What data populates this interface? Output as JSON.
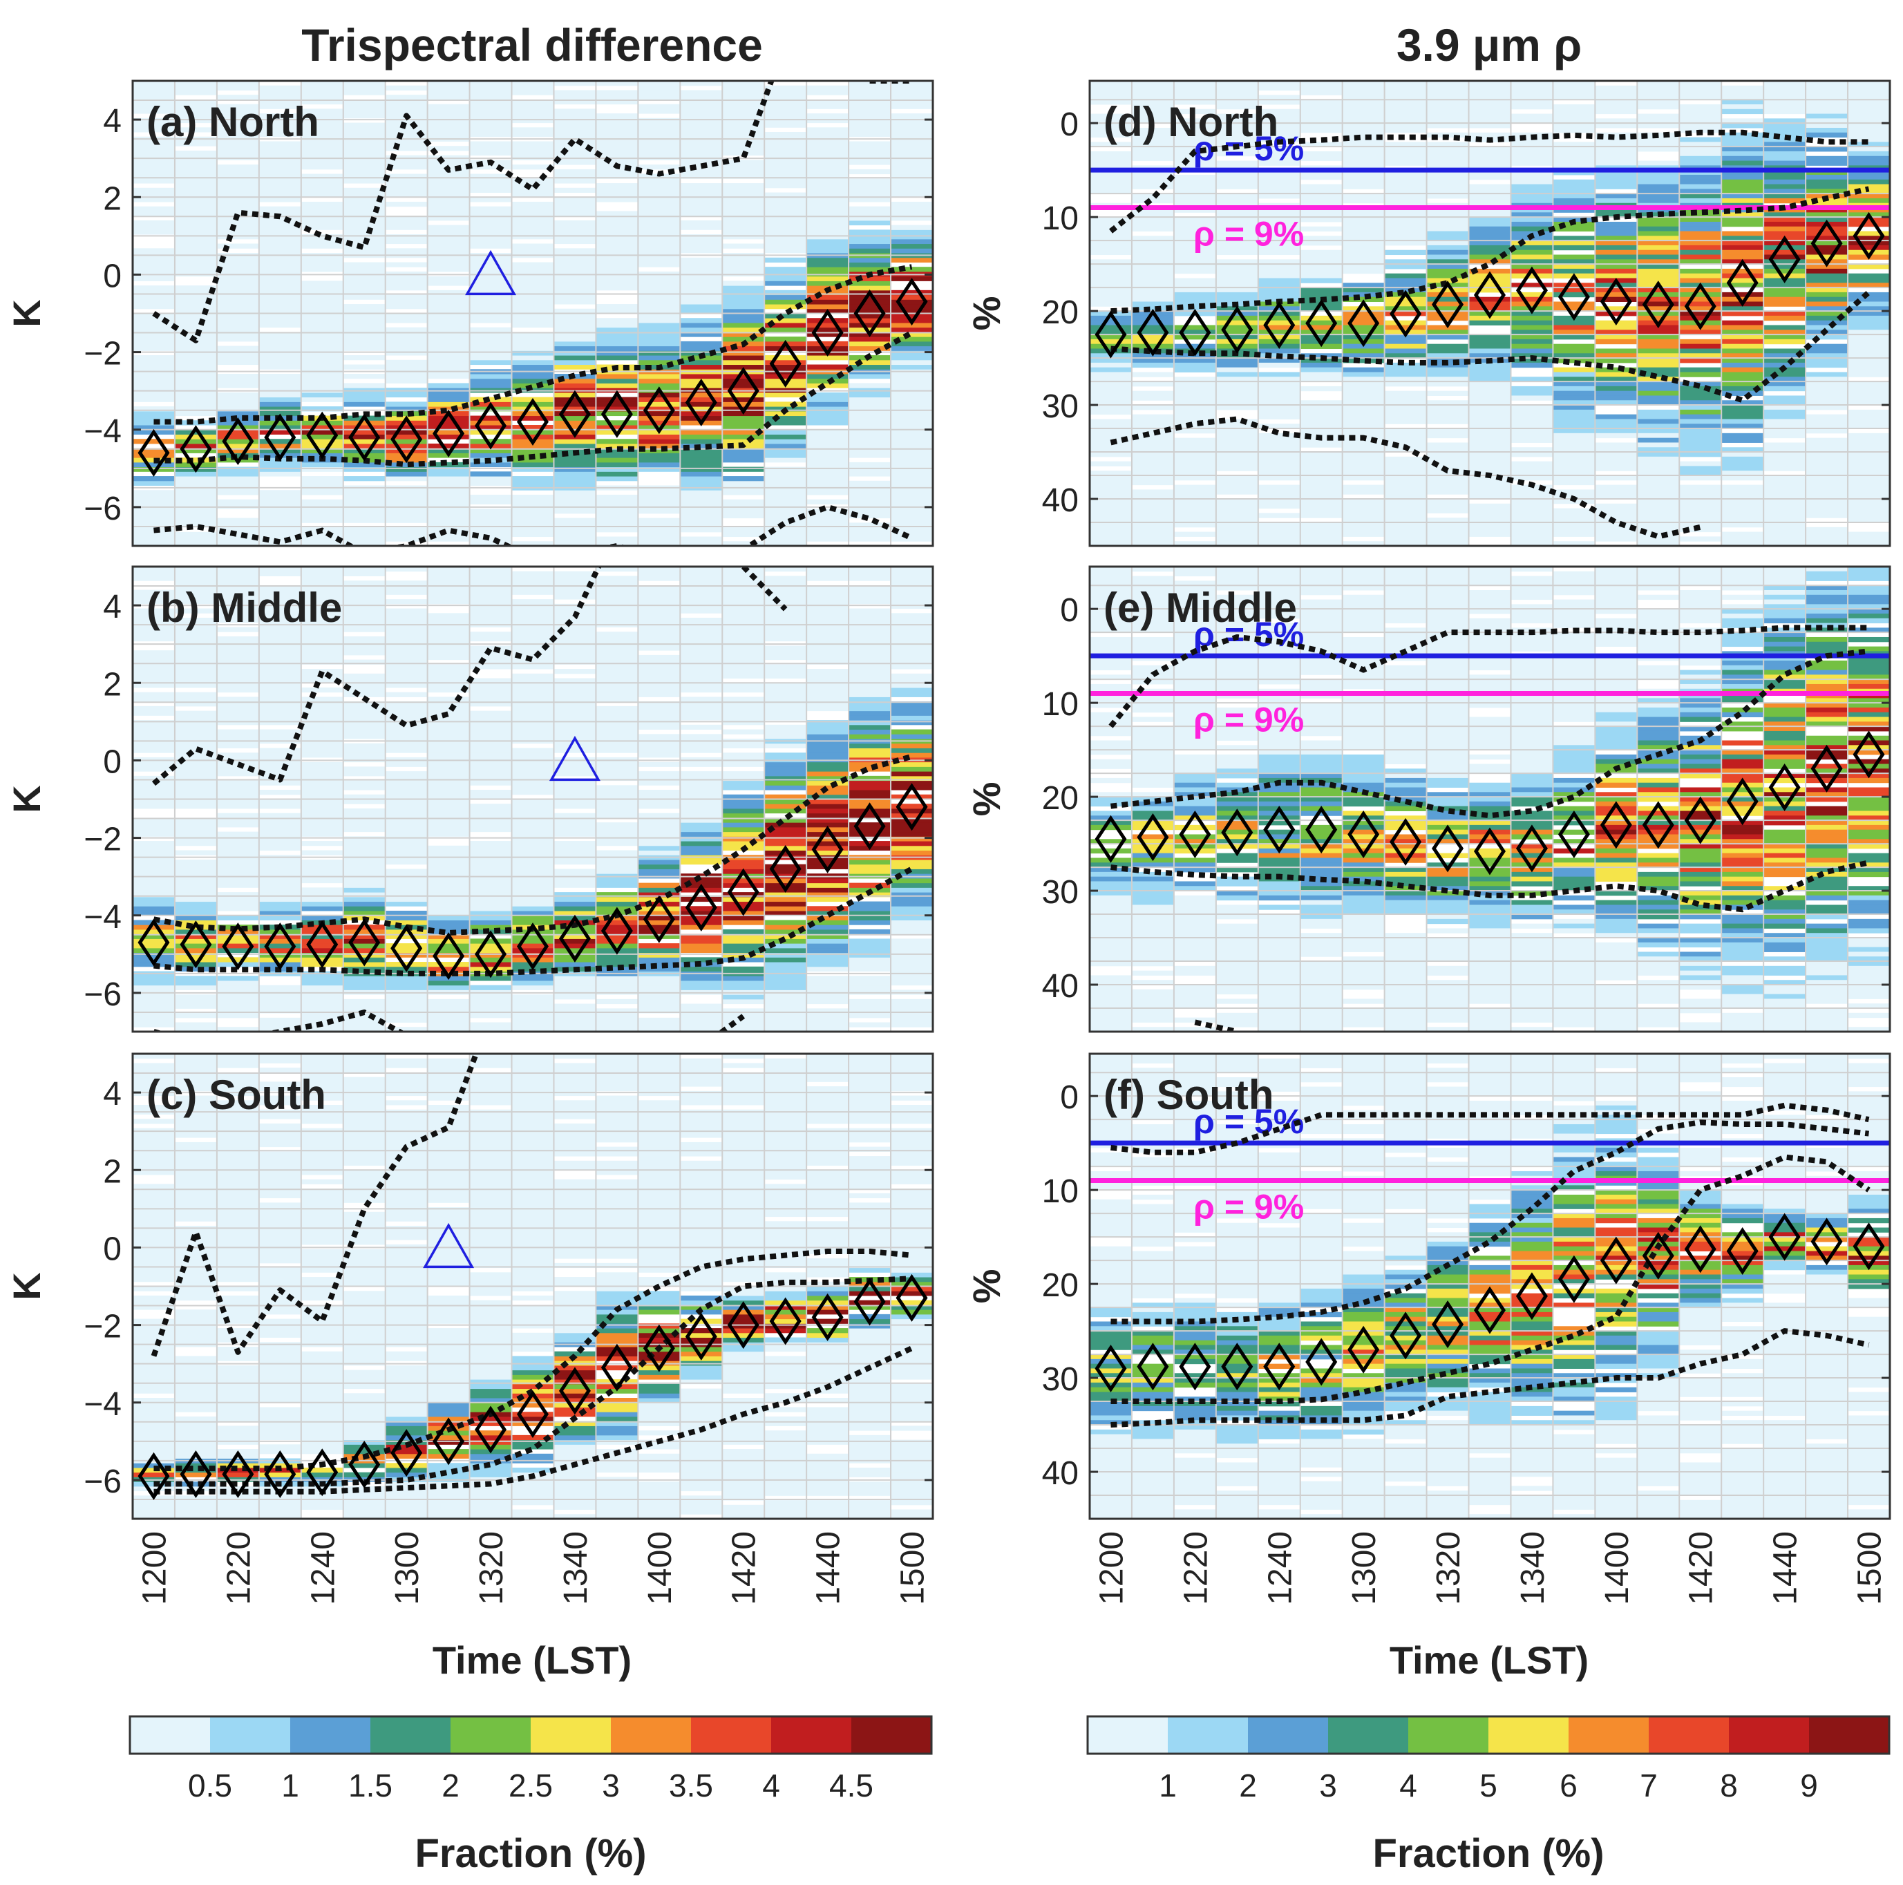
{
  "figure": {
    "left_column_title": "Trispectral difference",
    "right_column_title": "3.9 μm ρ",
    "x_label": "Time (LST)"
  },
  "chart_data": [
    {
      "type": "heatmap",
      "panel": "(a) North",
      "title": "(a) North",
      "ylabel": "K",
      "xlabel": "",
      "x": [
        1200,
        1210,
        1220,
        1230,
        1240,
        1250,
        1300,
        1310,
        1320,
        1330,
        1340,
        1350,
        1400,
        1410,
        1420,
        1430,
        1440,
        1450,
        1500
      ],
      "x_tick_labels": [],
      "ylim": [
        -7,
        5
      ],
      "y_ticks": [
        -6,
        -4,
        -2,
        0,
        2,
        4
      ],
      "y_tick_labels": [
        "−6",
        "−4",
        "−2",
        "0",
        "2",
        "4"
      ],
      "y_inverted": false,
      "median": [
        -4.6,
        -4.5,
        -4.3,
        -4.2,
        -4.15,
        -4.2,
        -4.25,
        -4.1,
        -3.9,
        -3.8,
        -3.6,
        -3.6,
        -3.5,
        -3.3,
        -3.0,
        -2.3,
        -1.5,
        -1.0,
        -0.7
      ],
      "quartile_upper": [
        -3.8,
        -3.8,
        -3.7,
        -3.7,
        -3.7,
        -3.6,
        -3.6,
        -3.5,
        -3.2,
        -2.9,
        -2.6,
        -2.4,
        -2.4,
        -2.1,
        -1.8,
        -1.0,
        -0.4,
        0.0,
        0.2
      ],
      "quartile_lower": [
        -4.8,
        -4.8,
        -4.7,
        -4.75,
        -4.75,
        -4.8,
        -4.9,
        -4.85,
        -4.8,
        -4.7,
        -4.6,
        -4.5,
        -4.5,
        -4.45,
        -4.4,
        -3.5,
        -2.8,
        -2.1,
        -1.5
      ],
      "extreme_upper": [
        -1.0,
        -1.7,
        1.6,
        1.5,
        1.0,
        0.7,
        4.1,
        2.7,
        2.9,
        2.2,
        3.5,
        2.8,
        2.6,
        2.8,
        3.0,
        6.0,
        null,
        5.0,
        5.0
      ],
      "extreme_lower": [
        -6.6,
        -6.5,
        -6.7,
        -6.9,
        -6.6,
        -7.2,
        -7.0,
        -6.6,
        -6.8,
        -7.3,
        -7.2,
        -7.0,
        -7.3,
        -7.2,
        -7.1,
        -6.4,
        -6.0,
        -6.3,
        -6.8
      ],
      "triangle": {
        "x": 1320,
        "y": 0
      }
    },
    {
      "type": "heatmap",
      "panel": "(b) Middle",
      "title": "(b) Middle",
      "ylabel": "K",
      "xlabel": "",
      "x": [
        1200,
        1210,
        1220,
        1230,
        1240,
        1250,
        1300,
        1310,
        1320,
        1330,
        1340,
        1350,
        1400,
        1410,
        1420,
        1430,
        1440,
        1450,
        1500
      ],
      "x_tick_labels": [],
      "ylim": [
        -7,
        5
      ],
      "y_ticks": [
        -6,
        -4,
        -2,
        0,
        2,
        4
      ],
      "y_tick_labels": [
        "−6",
        "−4",
        "−2",
        "0",
        "2",
        "4"
      ],
      "y_inverted": false,
      "median": [
        -4.7,
        -4.75,
        -4.8,
        -4.8,
        -4.75,
        -4.7,
        -4.85,
        -5.05,
        -5.0,
        -4.8,
        -4.6,
        -4.4,
        -4.1,
        -3.8,
        -3.4,
        -2.8,
        -2.3,
        -1.7,
        -1.2
      ],
      "quartile_upper": [
        -4.1,
        -4.3,
        -4.35,
        -4.3,
        -4.2,
        -4.1,
        -4.3,
        -4.45,
        -4.4,
        -4.35,
        -4.25,
        -4.0,
        -3.6,
        -3.0,
        -2.3,
        -1.5,
        -0.7,
        -0.2,
        0.1
      ],
      "quartile_lower": [
        -5.3,
        -5.4,
        -5.4,
        -5.4,
        -5.4,
        -5.45,
        -5.5,
        -5.5,
        -5.5,
        -5.45,
        -5.4,
        -5.35,
        -5.3,
        -5.25,
        -5.1,
        -4.6,
        -4.0,
        -3.4,
        -2.8
      ],
      "extreme_upper": [
        -0.6,
        0.3,
        -0.1,
        -0.5,
        2.3,
        1.6,
        0.9,
        1.2,
        2.9,
        2.6,
        3.7,
        6.0,
        null,
        null,
        5.0,
        3.9,
        null,
        null,
        null
      ],
      "extreme_lower": [
        -7.0,
        -7.3,
        -7.2,
        -7.0,
        -6.8,
        -6.5,
        -7.1,
        -7.3,
        -7.5,
        -7.3,
        -7.3,
        -7.2,
        -7.4,
        -7.4,
        -6.6,
        null,
        null,
        null,
        null
      ],
      "triangle": {
        "x": 1340,
        "y": 0
      }
    },
    {
      "type": "heatmap",
      "panel": "(c) South",
      "title": "(c) South",
      "ylabel": "K",
      "xlabel": "Time (LST)",
      "x": [
        1200,
        1210,
        1220,
        1230,
        1240,
        1250,
        1300,
        1310,
        1320,
        1330,
        1340,
        1350,
        1400,
        1410,
        1420,
        1430,
        1440,
        1450,
        1500
      ],
      "x_tick_labels": [
        "1200",
        "1220",
        "1240",
        "1300",
        "1320",
        "1340",
        "1400",
        "1420",
        "1440",
        "1500"
      ],
      "ylim": [
        -7,
        5
      ],
      "y_ticks": [
        -6,
        -4,
        -2,
        0,
        2,
        4
      ],
      "y_tick_labels": [
        "−6",
        "−4",
        "−2",
        "0",
        "2",
        "4"
      ],
      "y_inverted": false,
      "median": [
        -5.9,
        -5.85,
        -5.85,
        -5.85,
        -5.8,
        -5.6,
        -5.3,
        -5.0,
        -4.7,
        -4.3,
        -3.7,
        -3.1,
        -2.6,
        -2.3,
        -2.0,
        -1.9,
        -1.8,
        -1.4,
        -1.3
      ],
      "quartile_upper": [
        -5.7,
        -5.7,
        -5.7,
        -5.7,
        -5.6,
        -5.4,
        -5.1,
        -4.7,
        -4.3,
        -3.7,
        -2.8,
        -1.6,
        -1.0,
        -0.5,
        -0.3,
        -0.2,
        -0.1,
        -0.1,
        -0.2
      ],
      "quartile_lower": [
        -6.1,
        -6.1,
        -6.1,
        -6.1,
        -6.1,
        -6.05,
        -6.0,
        -5.8,
        -5.6,
        -5.2,
        -4.4,
        -3.6,
        -2.6,
        -1.6,
        -1.0,
        -0.9,
        -0.9,
        -0.85,
        -0.8
      ],
      "extreme_upper": [
        -2.8,
        0.4,
        -2.7,
        -1.1,
        -1.9,
        1.0,
        2.6,
        3.1,
        6.0,
        null,
        null,
        null,
        null,
        null,
        null,
        null,
        null,
        null,
        null
      ],
      "extreme_lower": [
        -6.3,
        -6.3,
        -6.3,
        -6.3,
        -6.3,
        -6.25,
        -6.2,
        -6.15,
        -6.1,
        -5.9,
        -5.6,
        -5.3,
        -5.0,
        -4.7,
        -4.3,
        -4.0,
        -3.6,
        -3.1,
        -2.6
      ],
      "triangle": {
        "x": 1310,
        "y": 0
      }
    },
    {
      "type": "heatmap",
      "panel": "(d) North",
      "title": "(d) North",
      "ylabel": "%",
      "xlabel": "",
      "x": [
        1200,
        1210,
        1220,
        1230,
        1240,
        1250,
        1300,
        1310,
        1320,
        1330,
        1340,
        1350,
        1400,
        1410,
        1420,
        1430,
        1440,
        1450,
        1500
      ],
      "x_tick_labels": [],
      "ylim": [
        -4.5,
        45
      ],
      "y_ticks": [
        0,
        10,
        20,
        30,
        40
      ],
      "y_tick_labels": [
        "0",
        "10",
        "20",
        "30",
        "40"
      ],
      "y_inverted": true,
      "median": [
        22.5,
        22.3,
        22.3,
        22.0,
        21.5,
        21.3,
        21.3,
        20.3,
        19.3,
        18.3,
        17.8,
        18.5,
        19.0,
        19.3,
        19.5,
        17.0,
        14.5,
        12.8,
        12.0
      ],
      "quartile_upper": [
        20.0,
        19.8,
        19.5,
        19.3,
        19.0,
        18.8,
        18.5,
        18.0,
        17.0,
        15.0,
        12.0,
        10.5,
        10.0,
        9.7,
        9.5,
        9.3,
        9.0,
        8.0,
        7.0
      ],
      "quartile_lower": [
        24.0,
        24.3,
        24.5,
        24.5,
        24.8,
        25.0,
        25.3,
        25.5,
        25.5,
        25.3,
        25.0,
        25.5,
        26.0,
        27.0,
        28.0,
        29.5,
        26.0,
        22.0,
        18.0
      ],
      "extreme_upper": [
        11.5,
        8.0,
        3.0,
        2.5,
        2.0,
        1.8,
        1.5,
        1.5,
        1.5,
        1.8,
        1.5,
        1.3,
        1.5,
        1.3,
        1.0,
        1.0,
        1.5,
        2.0,
        2.0
      ],
      "extreme_lower": [
        34.0,
        33.0,
        32.0,
        31.5,
        33.0,
        33.5,
        33.5,
        34.5,
        37.0,
        37.5,
        38.5,
        40.0,
        42.5,
        44.0,
        43.0,
        null,
        null,
        null,
        null
      ],
      "reference_lines": [
        {
          "label": "ρ = 5%",
          "value": 5,
          "color": "#1f1fe0"
        },
        {
          "label": "ρ = 9%",
          "value": 9,
          "color": "#ff22dd"
        }
      ]
    },
    {
      "type": "heatmap",
      "panel": "(e) Middle",
      "title": "(e) Middle",
      "ylabel": "%",
      "xlabel": "",
      "x": [
        1200,
        1210,
        1220,
        1230,
        1240,
        1250,
        1300,
        1310,
        1320,
        1330,
        1340,
        1350,
        1400,
        1410,
        1420,
        1430,
        1440,
        1450,
        1500
      ],
      "x_tick_labels": [],
      "ylim": [
        -4.5,
        45
      ],
      "y_ticks": [
        0,
        10,
        20,
        30,
        40
      ],
      "y_tick_labels": [
        "0",
        "10",
        "20",
        "30",
        "40"
      ],
      "y_inverted": true,
      "median": [
        24.5,
        24.3,
        24.0,
        23.8,
        23.5,
        23.5,
        24.0,
        24.8,
        25.5,
        25.8,
        25.5,
        24.0,
        23.0,
        23.0,
        22.5,
        20.5,
        19.0,
        17.0,
        15.5
      ],
      "quartile_upper": [
        21.0,
        20.5,
        20.0,
        19.5,
        18.5,
        18.5,
        19.5,
        20.5,
        21.5,
        22.0,
        21.5,
        20.0,
        17.0,
        15.5,
        14.0,
        11.0,
        7.0,
        5.0,
        4.5
      ],
      "quartile_lower": [
        27.5,
        28.0,
        28.3,
        28.5,
        28.5,
        28.8,
        29.0,
        29.5,
        30.0,
        30.5,
        30.5,
        30.0,
        29.5,
        30.0,
        31.5,
        32.0,
        30.0,
        28.0,
        27.0
      ],
      "extreme_upper": [
        12.5,
        7.0,
        4.5,
        3.0,
        3.5,
        4.5,
        6.5,
        4.5,
        2.5,
        2.5,
        2.5,
        2.3,
        2.3,
        2.5,
        2.5,
        2.3,
        2.0,
        2.0,
        2.0
      ],
      "extreme_lower": [
        null,
        null,
        44.0,
        45.0,
        null,
        null,
        null,
        null,
        null,
        null,
        null,
        null,
        null,
        null,
        null,
        null,
        null,
        null,
        null
      ],
      "reference_lines": [
        {
          "label": "ρ = 5%",
          "value": 5,
          "color": "#1f1fe0"
        },
        {
          "label": "ρ = 9%",
          "value": 9,
          "color": "#ff22dd"
        }
      ]
    },
    {
      "type": "heatmap",
      "panel": "(f) South",
      "title": "(f) South",
      "ylabel": "%",
      "xlabel": "Time (LST)",
      "x": [
        1200,
        1210,
        1220,
        1230,
        1240,
        1250,
        1300,
        1310,
        1320,
        1330,
        1340,
        1350,
        1400,
        1410,
        1420,
        1430,
        1440,
        1450,
        1500
      ],
      "x_tick_labels": [
        "1200",
        "1220",
        "1240",
        "1300",
        "1320",
        "1340",
        "1400",
        "1420",
        "1440",
        "1500"
      ],
      "ylim": [
        -4.5,
        45
      ],
      "y_ticks": [
        0,
        10,
        20,
        30,
        40
      ],
      "y_tick_labels": [
        "0",
        "10",
        "20",
        "30",
        "40"
      ],
      "y_inverted": true,
      "median": [
        29.0,
        28.8,
        28.8,
        28.8,
        28.8,
        28.3,
        27.0,
        25.5,
        24.3,
        22.8,
        21.3,
        19.5,
        17.5,
        17.0,
        16.3,
        16.5,
        15.0,
        15.5,
        16.0
      ],
      "quartile_upper": [
        24.0,
        24.0,
        24.0,
        23.8,
        23.5,
        23.0,
        22.0,
        20.5,
        18.0,
        15.5,
        12.0,
        8.0,
        6.0,
        3.5,
        2.8,
        3.0,
        3.0,
        3.5,
        4.0
      ],
      "quartile_lower": [
        32.5,
        32.5,
        32.5,
        32.5,
        32.5,
        32.3,
        31.5,
        30.5,
        29.5,
        28.5,
        27.0,
        25.5,
        23.5,
        16.0,
        10.0,
        8.5,
        6.5,
        7.0,
        10.0
      ],
      "extreme_upper": [
        5.5,
        6.0,
        6.0,
        5.0,
        3.5,
        2.0,
        2.0,
        2.0,
        2.0,
        2.0,
        2.0,
        2.0,
        2.0,
        2.0,
        2.0,
        2.0,
        1.0,
        1.5,
        2.5
      ],
      "extreme_lower": [
        35.0,
        34.8,
        34.5,
        34.5,
        34.5,
        34.5,
        34.5,
        34.0,
        32.0,
        31.5,
        31.0,
        30.5,
        30.0,
        30.0,
        28.5,
        27.5,
        25.0,
        25.5,
        26.5
      ],
      "reference_lines": [
        {
          "label": "ρ = 5%",
          "value": 5,
          "color": "#1f1fe0"
        },
        {
          "label": "ρ = 9%",
          "value": 9,
          "color": "#ff22dd"
        }
      ]
    }
  ],
  "colorbars": [
    {
      "label": "Fraction (%)",
      "colors": [
        "#e4f4fb",
        "#9cd8f4",
        "#5b9fd6",
        "#3e9a7f",
        "#74c043",
        "#f5e44a",
        "#f58c2d",
        "#e8472a",
        "#c11e1f",
        "#8c1515"
      ],
      "tick_labels": [
        "0.5",
        "1",
        "1.5",
        "2",
        "2.5",
        "3",
        "3.5",
        "4",
        "4.5"
      ]
    },
    {
      "label": "Fraction (%)",
      "colors": [
        "#e4f4fb",
        "#9cd8f4",
        "#5b9fd6",
        "#3e9a7f",
        "#74c043",
        "#f5e44a",
        "#f58c2d",
        "#e8472a",
        "#c11e1f",
        "#8c1515"
      ],
      "tick_labels": [
        "1",
        "2",
        "3",
        "4",
        "5",
        "6",
        "7",
        "8",
        "9"
      ]
    }
  ]
}
